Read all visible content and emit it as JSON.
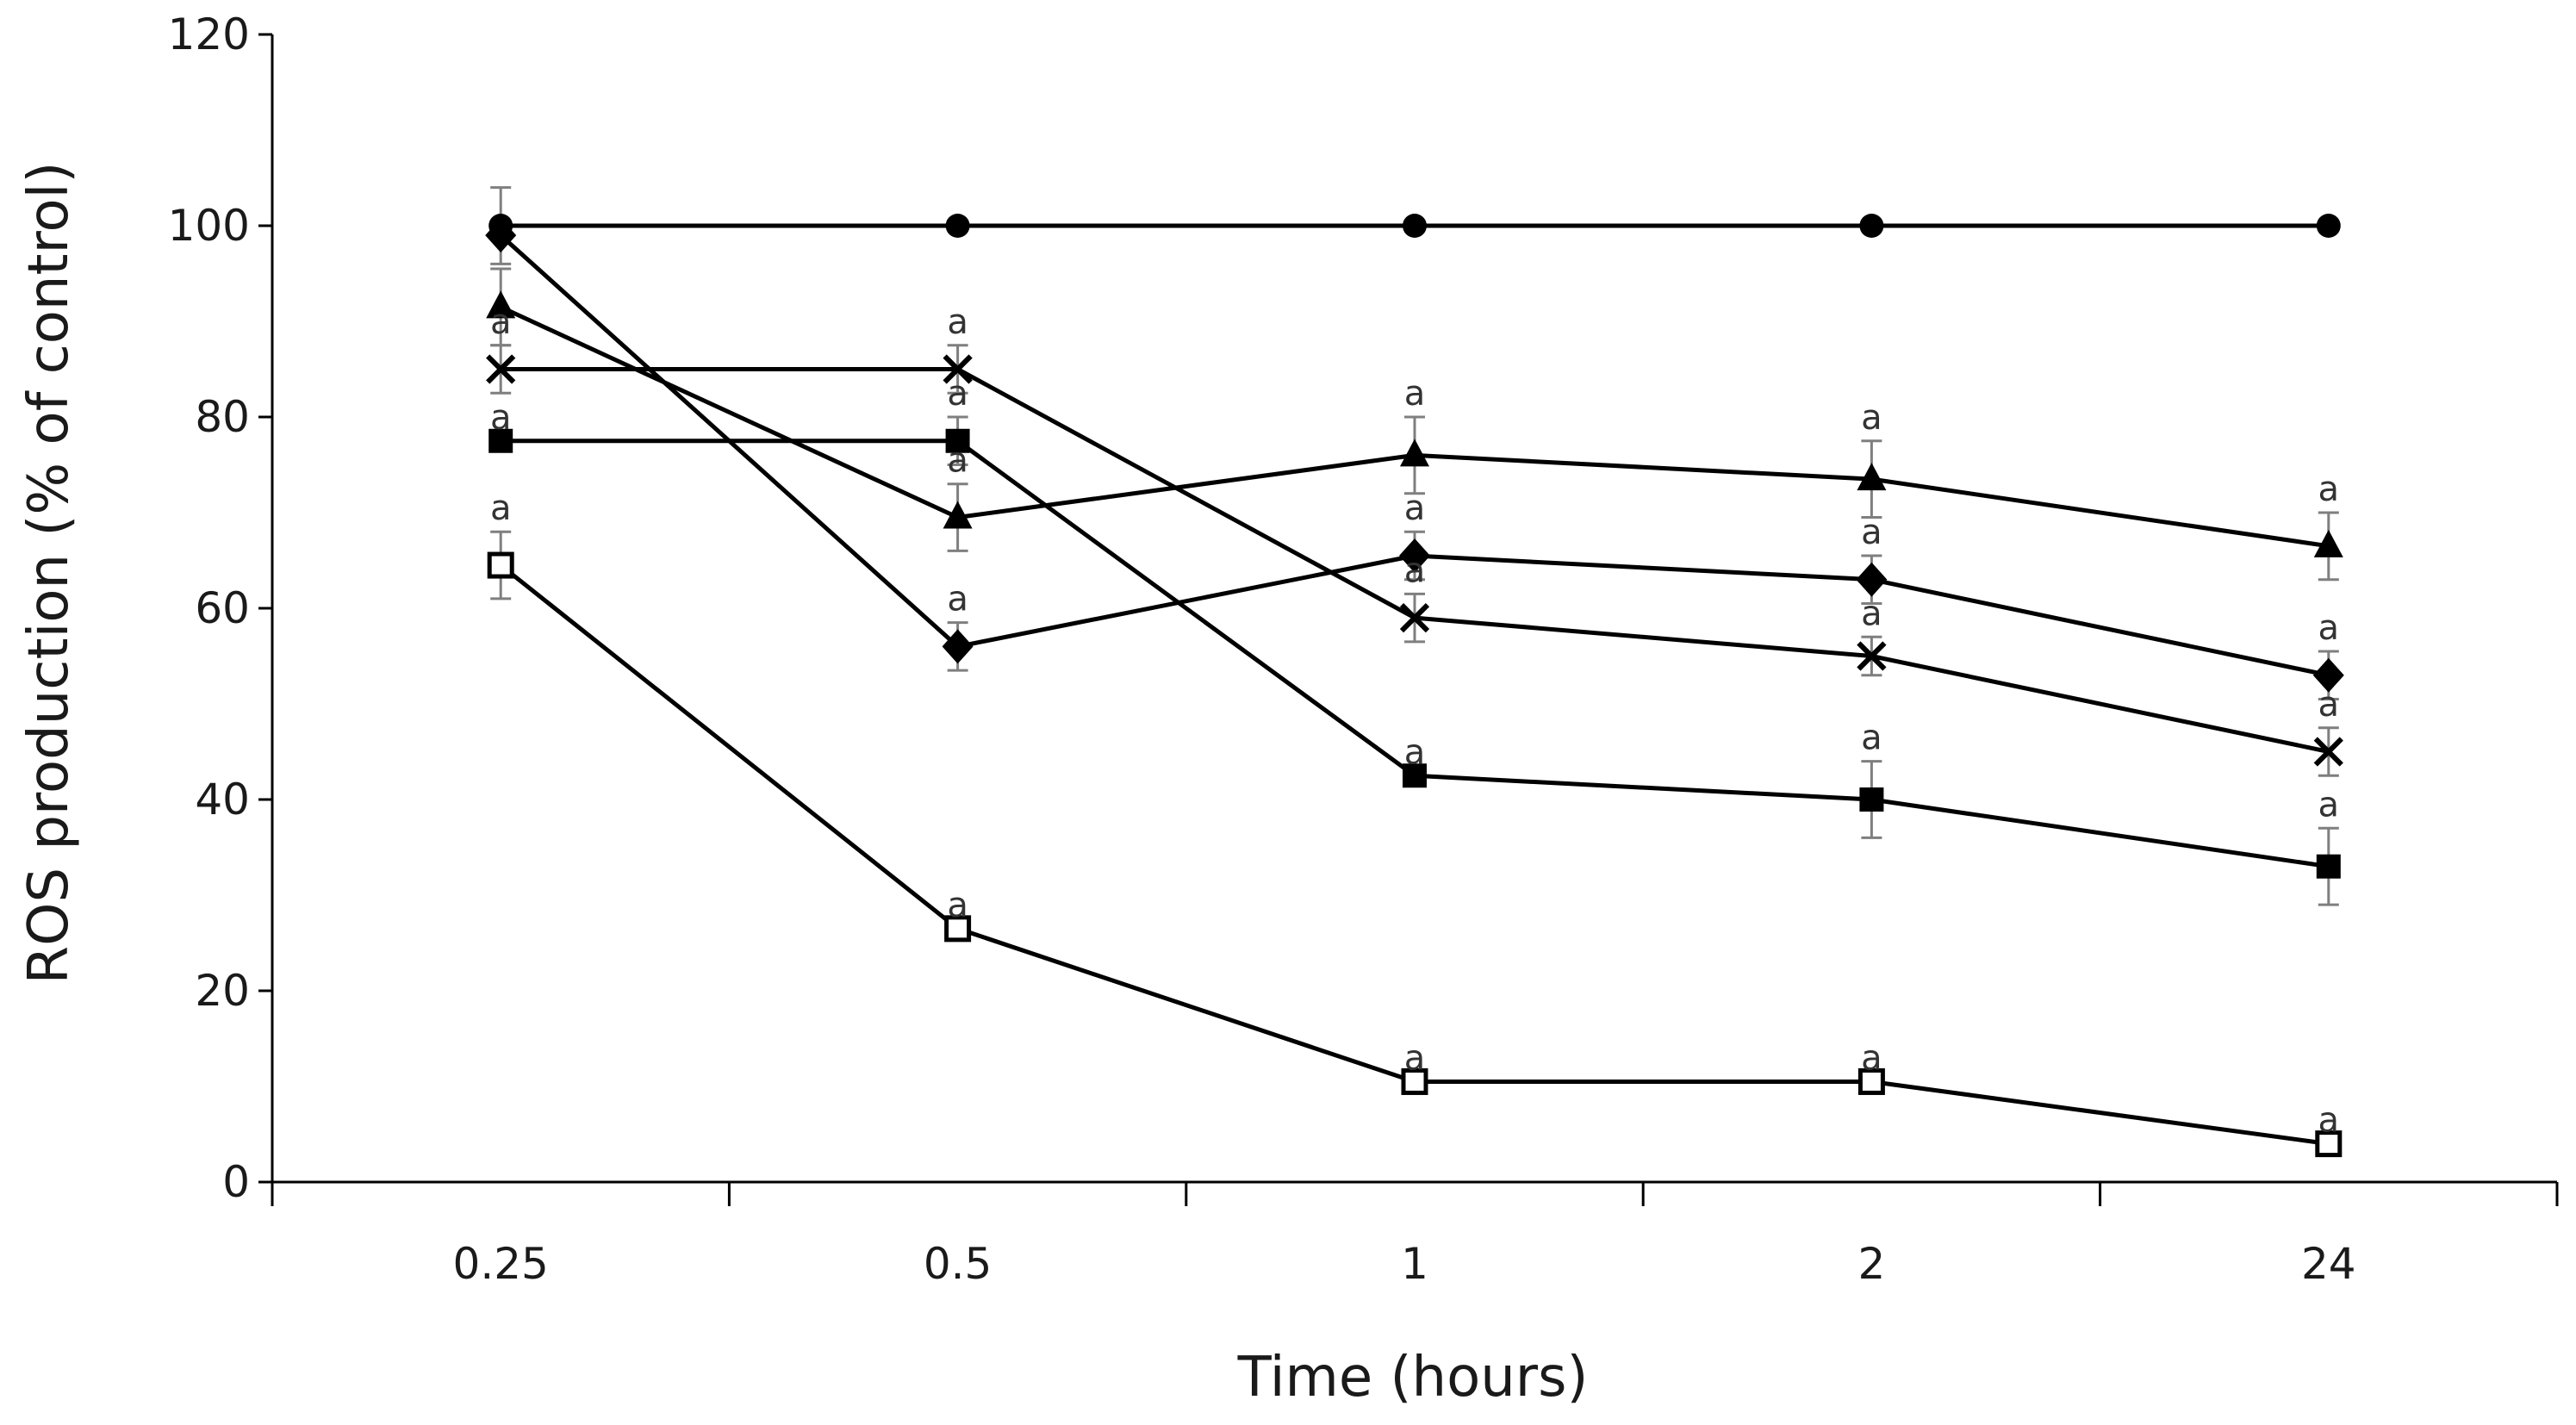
{
  "chart_data": {
    "type": "line",
    "title": "",
    "xlabel": "Time (hours)",
    "ylabel": "ROS production (% of control)",
    "categories": [
      "0.25",
      "0.5",
      "1",
      "2",
      "24"
    ],
    "ylim": [
      0,
      120
    ],
    "yticks": [
      0,
      20,
      40,
      60,
      80,
      100,
      120
    ],
    "ytick_labels": [
      "0",
      "20",
      "40",
      "60",
      "80",
      "100",
      "120"
    ],
    "grid": false,
    "legend": "none",
    "series": [
      {
        "name": "circle",
        "marker": "circle",
        "values": [
          100,
          100,
          100,
          100,
          100
        ],
        "errors": [
          4,
          0,
          0,
          0,
          0
        ],
        "sig": [
          "",
          "",
          "",
          "",
          ""
        ]
      },
      {
        "name": "triangle",
        "marker": "triangle",
        "values": [
          91.5,
          69.5,
          76,
          73.5,
          66.5
        ],
        "errors": [
          4,
          3.5,
          4,
          4,
          3.5
        ],
        "sig": [
          "",
          "a",
          "a",
          "a",
          "a"
        ]
      },
      {
        "name": "diamond",
        "marker": "diamond",
        "values": [
          99,
          56,
          65.5,
          63,
          53
        ],
        "errors": [
          0,
          2.5,
          2.5,
          2.5,
          2.5
        ],
        "sig": [
          "",
          "a",
          "a",
          "a",
          "a"
        ]
      },
      {
        "name": "cross",
        "marker": "x",
        "values": [
          85,
          85,
          59,
          55,
          45
        ],
        "errors": [
          2.5,
          2.5,
          2.5,
          2,
          2.5
        ],
        "sig": [
          "a",
          "a",
          "a",
          "a",
          "a"
        ]
      },
      {
        "name": "filled-square",
        "marker": "square-filled",
        "values": [
          77.5,
          77.5,
          42.5,
          40,
          33
        ],
        "errors": [
          0,
          2.5,
          0,
          4,
          4
        ],
        "sig": [
          "a",
          "a",
          "a",
          "a",
          "a"
        ]
      },
      {
        "name": "open-square",
        "marker": "square-open",
        "values": [
          64.5,
          26.5,
          10.5,
          10.5,
          4
        ],
        "errors": [
          3.5,
          0,
          0,
          0,
          0
        ],
        "sig": [
          "a",
          "a",
          "a",
          "a",
          "a"
        ]
      }
    ],
    "colors": {
      "ink": "#000000",
      "error_bar": "#7f7f7f",
      "text": "#1a1a1a",
      "axis": "#000000"
    }
  }
}
